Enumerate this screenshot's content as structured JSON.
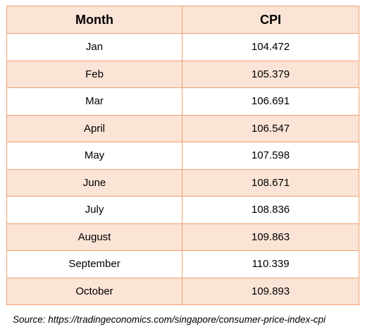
{
  "table": {
    "headers": [
      "Month",
      "CPI"
    ],
    "rows": [
      [
        "Jan",
        "104.472"
      ],
      [
        "Feb",
        "105.379"
      ],
      [
        "Mar",
        "106.691"
      ],
      [
        "April",
        "106.547"
      ],
      [
        "May",
        "107.598"
      ],
      [
        "June",
        "108.671"
      ],
      [
        "July",
        "108.836"
      ],
      [
        "August",
        "109.863"
      ],
      [
        "September",
        "110.339"
      ],
      [
        "October",
        "109.893"
      ]
    ]
  },
  "source": {
    "label": "Source:",
    "url": "https://tradingeconomics.com/singapore/consumer-price-index-cpi"
  },
  "colors": {
    "border": "#f0a070",
    "band": "#fbe4d6"
  }
}
